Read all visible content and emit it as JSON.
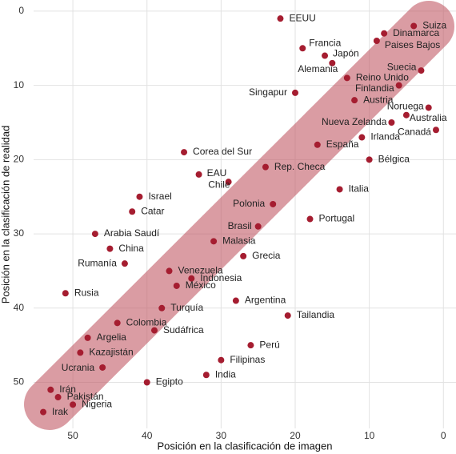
{
  "chart_data": {
    "type": "scatter",
    "x_label": "Posición en la clasificación de imagen",
    "y_label": "Posición en la clasificación de realidad",
    "color": "#a51d30",
    "band_color": "#c25a66",
    "grid": true,
    "xlim": [
      55.3,
      -1.7
    ],
    "ylim": [
      -1.5,
      56.2
    ],
    "xticks": [
      50,
      40,
      30,
      20,
      10,
      0
    ],
    "yticks": [
      0,
      10,
      20,
      30,
      40,
      50
    ],
    "labels": [
      "EEUU",
      "Suiza",
      "Dinamarca",
      "Paises Bajos",
      "Francia",
      "Japón",
      "Alemania",
      "Suecia",
      "Reino Unido",
      "Finlandia",
      "Singapur",
      "Austria",
      "Noruega",
      "Australia",
      "Nueva Zelanda",
      "Canadá",
      "Irlanda",
      "España",
      "Corea del Sur",
      "Bélgica",
      "Rep. Checa",
      "EAU",
      "Chile",
      "Italia",
      "Israel",
      "Polonia",
      "Catar",
      "Portugal",
      "Brasil",
      "Arabia Saudí",
      "Malasia",
      "China",
      "Grecia",
      "Rumanía",
      "Venezuela",
      "Indonesia",
      "México",
      "Rusia",
      "Argentina",
      "Turquía",
      "Tailandia",
      "Colombia",
      "Sudáfrica",
      "Argelia",
      "Perú",
      "Kazajistán",
      "Filipinas",
      "Ucrania",
      "India",
      "Egipto",
      "Irán",
      "Pakistán",
      "Nigeria",
      "Irak"
    ],
    "x": [
      22,
      4,
      8,
      9,
      19,
      16,
      15,
      3,
      13,
      6,
      20,
      12,
      2,
      5,
      7,
      1,
      11,
      17,
      35,
      10,
      24,
      33,
      29,
      14,
      41,
      23,
      42,
      18,
      25,
      47,
      31,
      45,
      27,
      43,
      37,
      34,
      36,
      51,
      28,
      38,
      21,
      44,
      39,
      48,
      26,
      49,
      30,
      46,
      32,
      40,
      53,
      52,
      50,
      54
    ],
    "values": [
      1,
      2,
      3,
      4,
      5,
      6,
      7,
      8,
      9,
      10,
      11,
      12,
      13,
      14,
      15,
      16,
      17,
      18,
      19,
      20,
      21,
      22,
      23,
      24,
      25,
      26,
      27,
      28,
      29,
      30,
      31,
      32,
      33,
      34,
      35,
      36,
      37,
      38,
      39,
      40,
      41,
      42,
      43,
      44,
      45,
      46,
      47,
      48,
      49,
      50,
      51,
      52,
      53,
      54
    ]
  }
}
